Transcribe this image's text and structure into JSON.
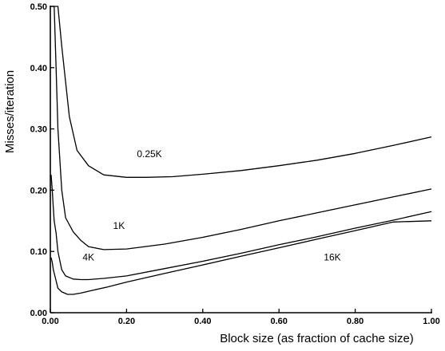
{
  "chart_data": {
    "type": "line",
    "title": "",
    "xlabel": "Block size (as fraction of cache size)",
    "ylabel": "Misses/iteration",
    "xlim": [
      0,
      1.0
    ],
    "ylim": [
      0,
      0.5
    ],
    "xticks": [
      0,
      0.2,
      0.4,
      0.6,
      0.8,
      1.0
    ],
    "xtick_labels": [
      "0.00",
      "0.20",
      "0.40",
      "0.60",
      "0.80",
      "1.00"
    ],
    "yticks": [
      0,
      0.1,
      0.2,
      0.3,
      0.4,
      0.5
    ],
    "ytick_labels": [
      "0.00",
      "0.10",
      "0.20",
      "0.30",
      "0.40",
      "0.50"
    ],
    "grid": false,
    "legend": "none",
    "series": [
      {
        "name": "0.25K",
        "x": [
          0.005,
          0.01,
          0.02,
          0.03,
          0.05,
          0.07,
          0.1,
          0.14,
          0.2,
          0.25,
          0.32,
          0.4,
          0.5,
          0.6,
          0.7,
          0.8,
          0.9,
          1.0
        ],
        "y": [
          0.5,
          0.5,
          0.5,
          0.435,
          0.32,
          0.265,
          0.24,
          0.225,
          0.221,
          0.221,
          0.222,
          0.226,
          0.232,
          0.24,
          0.249,
          0.26,
          0.273,
          0.287
        ]
      },
      {
        "name": "1K",
        "x": [
          0.002,
          0.005,
          0.01,
          0.015,
          0.02,
          0.03,
          0.04,
          0.06,
          0.08,
          0.1,
          0.14,
          0.2,
          0.3,
          0.4,
          0.5,
          0.6,
          0.7,
          0.8,
          0.9,
          1.0
        ],
        "y": [
          0.5,
          0.5,
          0.5,
          0.4,
          0.3,
          0.2,
          0.155,
          0.132,
          0.118,
          0.108,
          0.103,
          0.104,
          0.112,
          0.123,
          0.136,
          0.15,
          0.163,
          0.176,
          0.189,
          0.202
        ]
      },
      {
        "name": "4K",
        "x": [
          0.002,
          0.005,
          0.008,
          0.01,
          0.015,
          0.02,
          0.03,
          0.04,
          0.06,
          0.08,
          0.1,
          0.14,
          0.2,
          0.3,
          0.4,
          0.5,
          0.6,
          0.7,
          0.8,
          0.9,
          1.0
        ],
        "y": [
          0.225,
          0.2,
          0.17,
          0.15,
          0.13,
          0.1,
          0.07,
          0.06,
          0.055,
          0.054,
          0.054,
          0.056,
          0.06,
          0.072,
          0.084,
          0.097,
          0.111,
          0.124,
          0.138,
          0.151,
          0.165
        ]
      },
      {
        "name": "16K",
        "x": [
          0.002,
          0.005,
          0.008,
          0.012,
          0.02,
          0.03,
          0.045,
          0.06,
          0.08,
          0.1,
          0.15,
          0.2,
          0.3,
          0.4,
          0.5,
          0.6,
          0.7,
          0.8,
          0.9,
          1.0
        ],
        "y": [
          0.09,
          0.082,
          0.07,
          0.06,
          0.04,
          0.034,
          0.03,
          0.03,
          0.032,
          0.035,
          0.042,
          0.05,
          0.064,
          0.078,
          0.092,
          0.106,
          0.12,
          0.134,
          0.148,
          0.15
        ]
      }
    ],
    "curve_labels": [
      {
        "text": "0.25K",
        "x": 0.26,
        "y": 0.254
      },
      {
        "text": "1K",
        "x": 0.18,
        "y": 0.137
      },
      {
        "text": "4K",
        "x": 0.1,
        "y": 0.085
      },
      {
        "text": "16K",
        "x": 0.74,
        "y": 0.085
      }
    ]
  }
}
